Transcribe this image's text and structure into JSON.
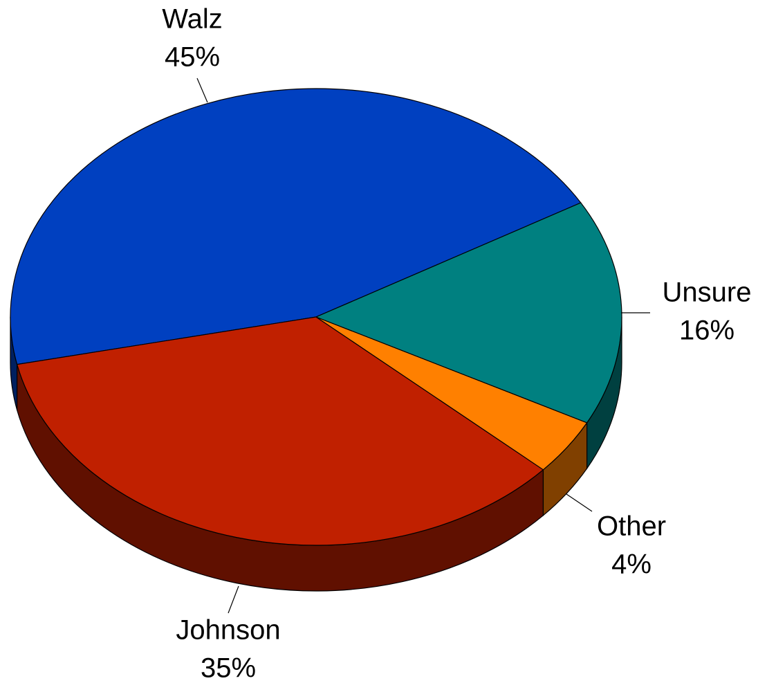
{
  "chart_data": {
    "type": "pie",
    "categories": [
      "Walz",
      "Johnson",
      "Other",
      "Unsure"
    ],
    "values": [
      45,
      35,
      4,
      16
    ],
    "value_labels": [
      "45%",
      "35%",
      "4%",
      "16%"
    ],
    "colors": [
      "#0040c0",
      "#c02000",
      "#ff8000",
      "#008080"
    ]
  }
}
